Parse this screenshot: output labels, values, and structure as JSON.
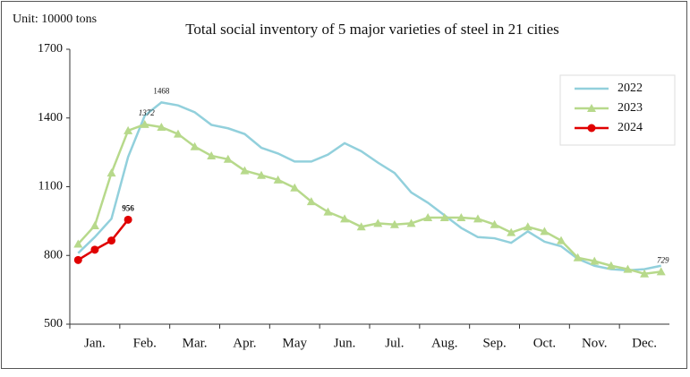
{
  "chart_data": {
    "type": "line",
    "title": "Total social inventory of 5 major varieties of steel in 21 cities",
    "unit_label": "Unit:  10000 tons",
    "categories": [
      null,
      "Jan.",
      null,
      null,
      "Feb.",
      null,
      null,
      "Mar.",
      null,
      null,
      "Apr.",
      null,
      null,
      "May",
      null,
      null,
      "Jun.",
      null,
      null,
      "Jul.",
      null,
      null,
      "Aug.",
      null,
      null,
      "Sep.",
      null,
      null,
      "Oct.",
      null,
      null,
      "Nov.",
      null,
      null,
      "Dec.",
      null
    ],
    "series": [
      {
        "name": "2022",
        "color": "#92d0dc",
        "marker": "none",
        "values": [
          810,
          880,
          960,
          1230,
          1410,
          1468,
          1455,
          1425,
          1370,
          1355,
          1330,
          1270,
          1245,
          1210,
          1210,
          1240,
          1290,
          1255,
          1205,
          1160,
          1075,
          1030,
          975,
          920,
          880,
          875,
          855,
          905,
          860,
          840,
          785,
          755,
          740,
          735,
          740,
          755
        ],
        "value_labels": [
          null,
          null,
          null,
          null,
          null,
          "1468",
          null,
          null,
          null,
          null,
          null,
          null,
          null,
          null,
          null,
          null,
          null,
          null,
          null,
          null,
          null,
          null,
          null,
          null,
          null,
          null,
          null,
          null,
          null,
          null,
          null,
          null,
          null,
          null,
          null,
          null
        ]
      },
      {
        "name": "2023",
        "color": "#b7d98b",
        "marker": "triangle",
        "values": [
          850,
          930,
          1160,
          1345,
          1372,
          1360,
          1330,
          1275,
          1235,
          1220,
          1170,
          1150,
          1130,
          1095,
          1035,
          990,
          960,
          925,
          940,
          935,
          940,
          965,
          965,
          965,
          960,
          935,
          900,
          925,
          905,
          865,
          790,
          775,
          755,
          740,
          720,
          729
        ],
        "value_labels": [
          null,
          null,
          null,
          null,
          "1372",
          null,
          null,
          null,
          null,
          null,
          null,
          null,
          null,
          null,
          null,
          null,
          null,
          null,
          null,
          null,
          null,
          null,
          null,
          null,
          null,
          null,
          null,
          null,
          null,
          null,
          null,
          null,
          null,
          null,
          null,
          "729"
        ]
      },
      {
        "name": "2024",
        "color": "#e00000",
        "marker": "circle",
        "values": [
          780,
          825,
          865,
          956,
          null,
          null,
          null,
          null,
          null,
          null,
          null,
          null,
          null,
          null,
          null,
          null,
          null,
          null,
          null,
          null,
          null,
          null,
          null,
          null,
          null,
          null,
          null,
          null,
          null,
          null,
          null,
          null,
          null,
          null,
          null,
          null
        ],
        "value_labels": [
          null,
          null,
          null,
          "956",
          null,
          null,
          null,
          null,
          null,
          null,
          null,
          null,
          null,
          null,
          null,
          null,
          null,
          null,
          null,
          null,
          null,
          null,
          null,
          null,
          null,
          null,
          null,
          null,
          null,
          null,
          null,
          null,
          null,
          null,
          null,
          null
        ]
      }
    ],
    "ylim": [
      500,
      1700
    ],
    "yticks": [
      500,
      800,
      1100,
      1400,
      1700
    ],
    "grid": false,
    "legend": "upper right"
  }
}
